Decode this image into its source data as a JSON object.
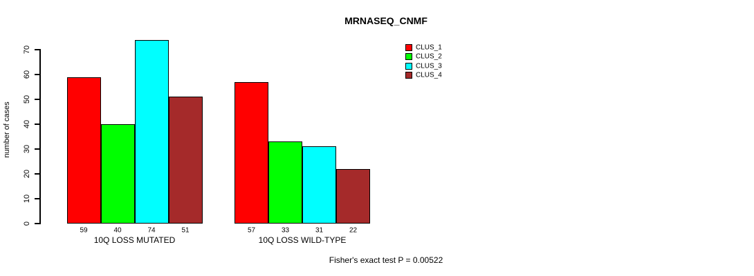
{
  "chart_data": {
    "type": "bar",
    "title": "MRNASEQ_CNMF",
    "ylabel": "number of cases",
    "xlabel": "",
    "categories": [
      "10Q LOSS MUTATED",
      "10Q LOSS WILD-TYPE"
    ],
    "series": [
      {
        "name": "CLUS_1",
        "color": "#ff0000",
        "values": [
          59,
          57
        ]
      },
      {
        "name": "CLUS_2",
        "color": "#00ff00",
        "values": [
          40,
          33
        ]
      },
      {
        "name": "CLUS_3",
        "color": "#00ffff",
        "values": [
          74,
          31
        ]
      },
      {
        "name": "CLUS_4",
        "color": "#a52a2a",
        "values": [
          51,
          22
        ]
      }
    ],
    "bar_value_labels": [
      [
        59,
        40,
        74,
        51
      ],
      [
        57,
        33,
        31,
        22
      ]
    ],
    "yticks": [
      0,
      10,
      20,
      30,
      40,
      50,
      60,
      70
    ],
    "ylim": [
      0,
      74
    ],
    "grid": false,
    "legend_position": "top-right",
    "legend": [
      "CLUS_1",
      "CLUS_2",
      "CLUS_3",
      "CLUS_4"
    ],
    "annotation": "Fisher's exact test P = 0.00522",
    "axis_color": "#000000",
    "background_color": "#ffffff"
  }
}
